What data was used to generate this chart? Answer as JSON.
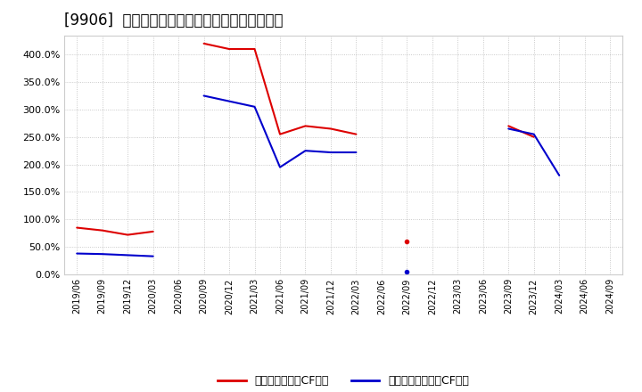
{
  "title": "[9906]  有利子負債キャッシュフロー比率の推移",
  "x_labels": [
    "2019/06",
    "2019/09",
    "2019/12",
    "2020/03",
    "2020/06",
    "2020/09",
    "2020/12",
    "2021/03",
    "2021/06",
    "2021/09",
    "2021/12",
    "2022/03",
    "2022/06",
    "2022/09",
    "2022/12",
    "2023/03",
    "2023/06",
    "2023/09",
    "2023/12",
    "2024/03",
    "2024/06",
    "2024/09"
  ],
  "red_segments": [
    [
      [
        0,
        85
      ],
      [
        1,
        80
      ],
      [
        2,
        72
      ],
      [
        3,
        78
      ]
    ],
    [
      [
        5,
        420
      ],
      [
        6,
        410
      ],
      [
        7,
        410
      ],
      [
        8,
        255
      ],
      [
        9,
        270
      ],
      [
        10,
        265
      ],
      [
        11,
        255
      ]
    ],
    [
      [
        13,
        60
      ]
    ],
    [
      [
        17,
        270
      ],
      [
        18,
        250
      ]
    ]
  ],
  "blue_segments": [
    [
      [
        0,
        38
      ],
      [
        1,
        37
      ],
      [
        2,
        35
      ],
      [
        3,
        33
      ]
    ],
    [
      [
        5,
        325
      ],
      [
        6,
        315
      ],
      [
        7,
        305
      ],
      [
        8,
        195
      ],
      [
        9,
        225
      ],
      [
        10,
        222
      ],
      [
        11,
        222
      ]
    ],
    [
      [
        13,
        5
      ]
    ],
    [
      [
        17,
        265
      ],
      [
        18,
        255
      ],
      [
        19,
        180
      ]
    ]
  ],
  "red_color": "#dd0000",
  "blue_color": "#0000cc",
  "bg_color": "#ffffff",
  "grid_color": "#aaaaaa",
  "legend_red": "有利子負債営業CF比率",
  "legend_blue": "有利子負債フリーCF比率",
  "ylim": [
    0,
    435
  ],
  "yticks": [
    0,
    50,
    100,
    150,
    200,
    250,
    300,
    350,
    400
  ],
  "title_fontsize": 12,
  "title_bracket": "[9906]"
}
